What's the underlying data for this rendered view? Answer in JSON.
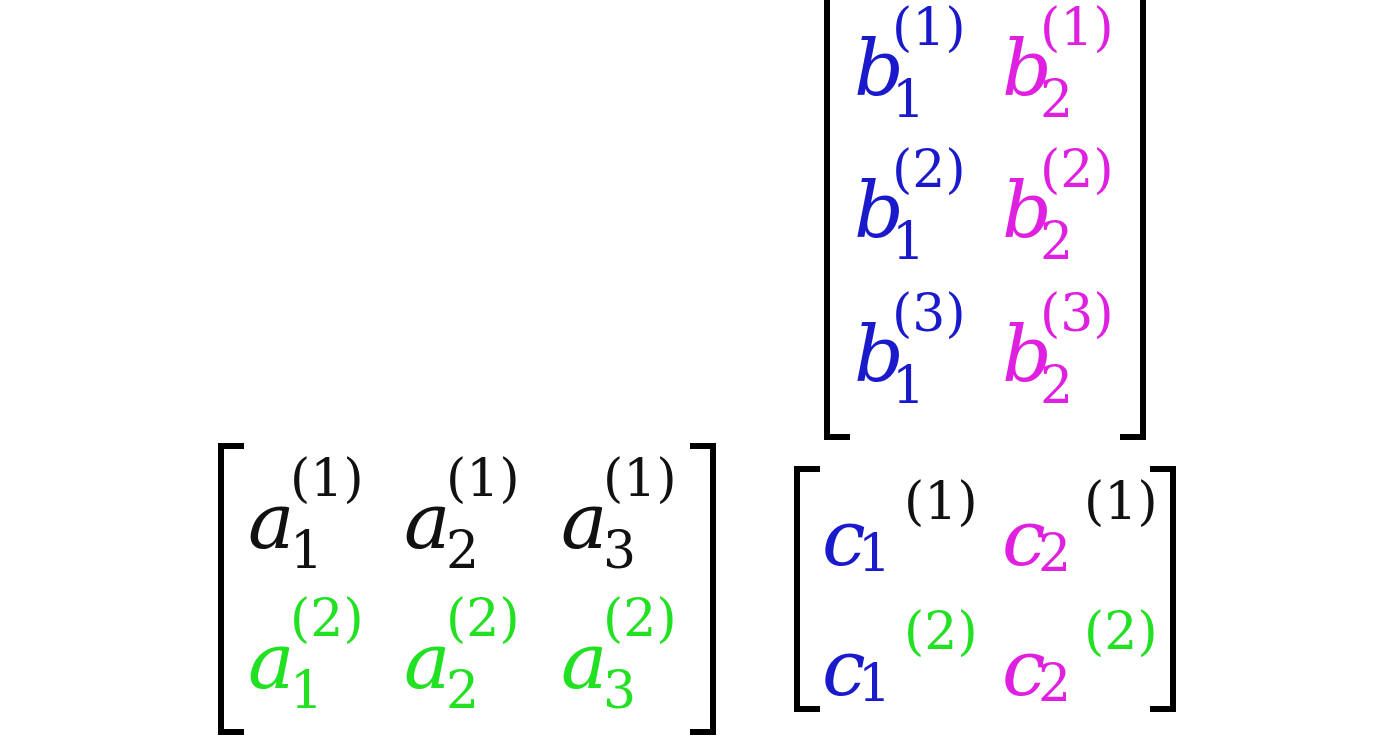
{
  "colors": {
    "black": "#111111",
    "green": "#22e022",
    "blue": "#1a1acc",
    "magenta": "#e020e0"
  },
  "matrix_a": {
    "rows": [
      [
        {
          "base": "a",
          "sub": "1",
          "sup": "(1)",
          "color": "#111111",
          "sup_color": "#111111",
          "sub_color": "#111111"
        },
        {
          "base": "a",
          "sub": "2",
          "sup": "(1)",
          "color": "#111111",
          "sup_color": "#111111",
          "sub_color": "#111111"
        },
        {
          "base": "a",
          "sub": "3",
          "sup": "(1)",
          "color": "#111111",
          "sup_color": "#111111",
          "sub_color": "#111111"
        }
      ],
      [
        {
          "base": "a",
          "sub": "1",
          "sup": "(2)",
          "color": "#22e022",
          "sup_color": "#22e022",
          "sub_color": "#22e022"
        },
        {
          "base": "a",
          "sub": "2",
          "sup": "(2)",
          "color": "#22e022",
          "sup_color": "#22e022",
          "sub_color": "#22e022"
        },
        {
          "base": "a",
          "sub": "3",
          "sup": "(2)",
          "color": "#22e022",
          "sup_color": "#22e022",
          "sub_color": "#22e022"
        }
      ]
    ]
  },
  "matrix_b": {
    "rows": [
      [
        {
          "base": "b",
          "sub": "1",
          "sup": "(1)",
          "color": "#1a1acc",
          "sup_color": "#1a1acc",
          "sub_color": "#1a1acc"
        },
        {
          "base": "b",
          "sub": "2",
          "sup": "(1)",
          "color": "#e020e0",
          "sup_color": "#e020e0",
          "sub_color": "#e020e0"
        }
      ],
      [
        {
          "base": "b",
          "sub": "1",
          "sup": "(2)",
          "color": "#1a1acc",
          "sup_color": "#1a1acc",
          "sub_color": "#1a1acc"
        },
        {
          "base": "b",
          "sub": "2",
          "sup": "(2)",
          "color": "#e020e0",
          "sup_color": "#e020e0",
          "sub_color": "#e020e0"
        }
      ],
      [
        {
          "base": "b",
          "sub": "1",
          "sup": "(3)",
          "color": "#1a1acc",
          "sup_color": "#1a1acc",
          "sub_color": "#1a1acc"
        },
        {
          "base": "b",
          "sub": "2",
          "sup": "(3)",
          "color": "#e020e0",
          "sup_color": "#e020e0",
          "sub_color": "#e020e0"
        }
      ]
    ]
  },
  "matrix_c": {
    "rows": [
      [
        {
          "base": "c",
          "sub": "1",
          "sup": "(1)",
          "color": "#1a1acc",
          "sup_color": "#111111",
          "sub_color": "#1a1acc"
        },
        {
          "base": "c",
          "sub": "2",
          "sup": "(1)",
          "color": "#e020e0",
          "sup_color": "#111111",
          "sub_color": "#e020e0"
        }
      ],
      [
        {
          "base": "c",
          "sub": "1",
          "sup": "(2)",
          "color": "#1a1acc",
          "sup_color": "#22e022",
          "sub_color": "#1a1acc"
        },
        {
          "base": "c",
          "sub": "2",
          "sup": "(2)",
          "color": "#e020e0",
          "sup_color": "#22e022",
          "sub_color": "#e020e0"
        }
      ]
    ]
  }
}
